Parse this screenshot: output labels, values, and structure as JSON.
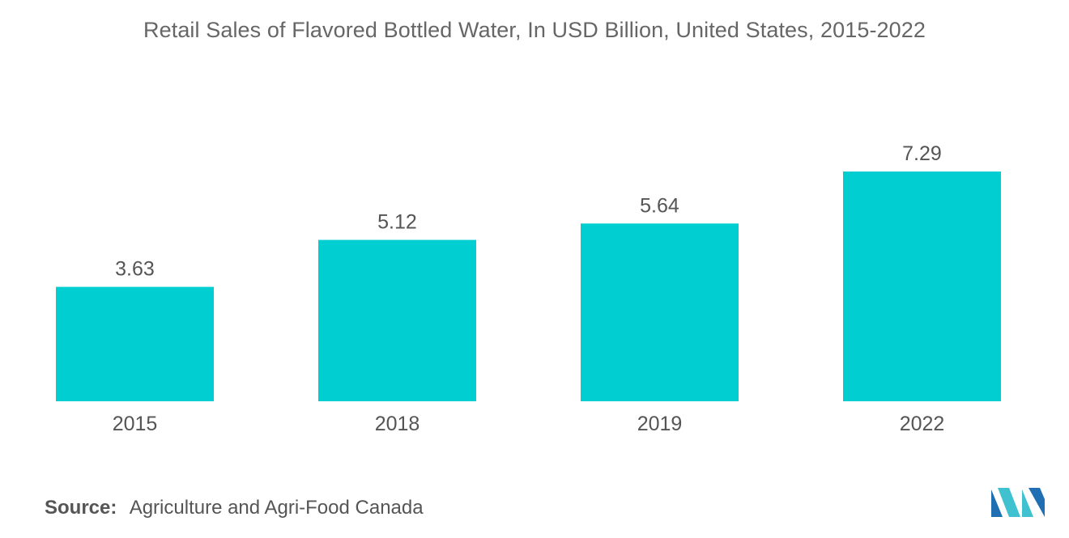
{
  "chart_data": {
    "type": "bar",
    "title": "Retail Sales of Flavored Bottled Water, In USD Billion, United States, 2015-2022",
    "categories": [
      "2015",
      "2018",
      "2019",
      "2022"
    ],
    "values": [
      3.63,
      5.12,
      5.64,
      7.29
    ],
    "value_labels": [
      "3.63",
      "5.12",
      "5.64",
      "7.29"
    ],
    "xlabel": "",
    "ylabel": "",
    "ylim": [
      0,
      7.29
    ],
    "grid": false,
    "legend": "none",
    "bar_color": "#00CED1"
  },
  "source": {
    "label": "Source:",
    "text": "Agriculture and Agri-Food Canada"
  },
  "colors": {
    "bar": "#00CED1",
    "logo_dark": "#1F6FB2",
    "logo_light": "#3FC1D0"
  },
  "logo": {
    "icon": "mordor-intelligence-logo-icon"
  }
}
